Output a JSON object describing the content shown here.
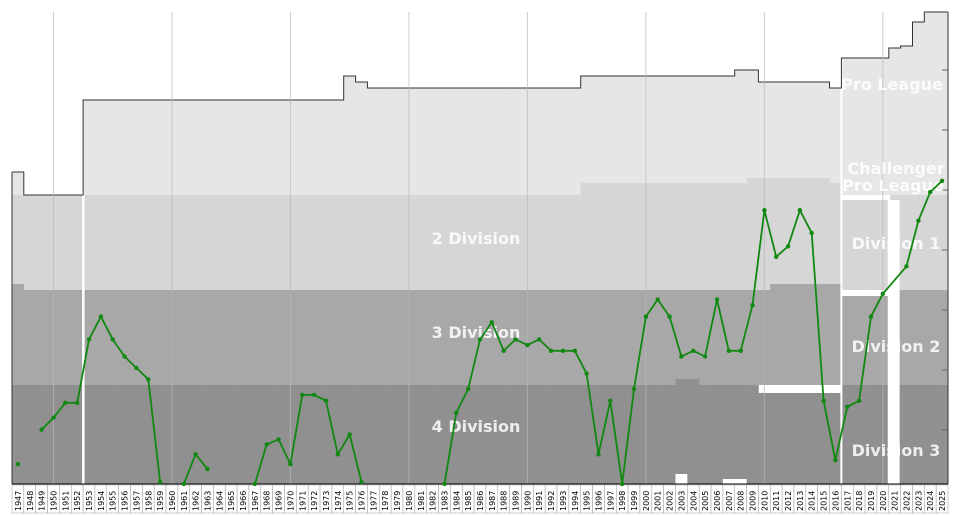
{
  "chart_data": {
    "type": "line",
    "x_start": 1947,
    "x_end": 2025,
    "x_labels": [
      "1947",
      "1948",
      "1949",
      "1950",
      "1951",
      "1952",
      "1953",
      "1954",
      "1955",
      "1956",
      "1957",
      "1958",
      "1959",
      "1960",
      "1961",
      "1962",
      "1963",
      "1964",
      "1965",
      "1966",
      "1967",
      "1968",
      "1969",
      "1970",
      "1971",
      "1972",
      "1973",
      "1974",
      "1975",
      "1976",
      "1977",
      "1978",
      "1979",
      "1980",
      "1981",
      "1982",
      "1983",
      "1984",
      "1985",
      "1986",
      "1987",
      "1988",
      "1989",
      "1990",
      "1991",
      "1992",
      "1993",
      "1994",
      "1995",
      "1996",
      "1997",
      "1998",
      "1999",
      "2000",
      "2001",
      "2002",
      "2003",
      "2004",
      "2005",
      "2006",
      "2007",
      "2008",
      "2009",
      "2010",
      "2011",
      "2012",
      "2013",
      "2014",
      "2015",
      "2016",
      "2017",
      "2018",
      "2019",
      "2020",
      "2021",
      "2022",
      "2023",
      "2024",
      "2025"
    ],
    "tier_labels": [
      {
        "text": "Pro League",
        "row": 1
      },
      {
        "text": "2 Division",
        "row": 2
      },
      {
        "text": "3 Division",
        "row": 3
      },
      {
        "text": "4 Division",
        "row": 4
      },
      {
        "text": "Challenger",
        "row": 1.75
      },
      {
        "text": "Pro League",
        "row": 2.1
      },
      {
        "text": "Division 1",
        "row": 2.5
      },
      {
        "text": "Division 2",
        "row": 3.6
      },
      {
        "text": "Division 3",
        "row": 4.7
      }
    ],
    "series": [
      {
        "color": "#118811",
        "points": [
          [
            1947,
            4.8
          ],
          [
            1949,
            4.45
          ],
          [
            1950,
            4.33
          ],
          [
            1951,
            4.18
          ],
          [
            1952,
            4.18
          ],
          [
            1953,
            3.52
          ],
          [
            1954,
            3.28
          ],
          [
            1955,
            3.52
          ],
          [
            1956,
            3.7
          ],
          [
            1957,
            3.82
          ],
          [
            1958,
            3.94
          ],
          [
            1959,
            4.98
          ],
          [
            1961,
            5.0
          ],
          [
            1962,
            4.7
          ],
          [
            1963,
            4.85
          ],
          [
            1967,
            5.0
          ],
          [
            1968,
            4.6
          ],
          [
            1969,
            4.55
          ],
          [
            1970,
            4.8
          ],
          [
            1971,
            4.1
          ],
          [
            1972,
            4.1
          ],
          [
            1973,
            4.16
          ],
          [
            1974,
            4.7
          ],
          [
            1975,
            4.5
          ],
          [
            1976,
            4.98
          ],
          [
            1983,
            5.0
          ],
          [
            1984,
            4.28
          ],
          [
            1985,
            4.04
          ],
          [
            1986,
            3.52
          ],
          [
            1987,
            3.34
          ],
          [
            1988,
            3.64
          ],
          [
            1989,
            3.52
          ],
          [
            1990,
            3.58
          ],
          [
            1991,
            3.52
          ],
          [
            1992,
            3.64
          ],
          [
            1993,
            3.64
          ],
          [
            1994,
            3.64
          ],
          [
            1995,
            3.88
          ],
          [
            1996,
            4.7
          ],
          [
            1997,
            4.16
          ],
          [
            1998,
            5.0
          ],
          [
            1999,
            4.04
          ],
          [
            2000,
            3.28
          ],
          [
            2001,
            3.1
          ],
          [
            2002,
            3.28
          ],
          [
            2003,
            3.7
          ],
          [
            2004,
            3.64
          ],
          [
            2005,
            3.7
          ],
          [
            2006,
            3.1
          ],
          [
            2007,
            3.64
          ],
          [
            2008,
            3.64
          ],
          [
            2009,
            3.16
          ],
          [
            2010,
            2.16
          ],
          [
            2011,
            2.65
          ],
          [
            2012,
            2.54
          ],
          [
            2013,
            2.16
          ],
          [
            2014,
            2.4
          ],
          [
            2015,
            4.16
          ],
          [
            2016,
            4.76
          ],
          [
            2017,
            4.22
          ],
          [
            2018,
            4.16
          ],
          [
            2019,
            3.28
          ],
          [
            2020,
            3.04
          ],
          [
            2022,
            2.75
          ],
          [
            2023,
            2.27
          ],
          [
            2024,
            1.97
          ],
          [
            2025,
            1.85
          ]
        ]
      }
    ],
    "ylim": [
      0,
      5
    ]
  }
}
